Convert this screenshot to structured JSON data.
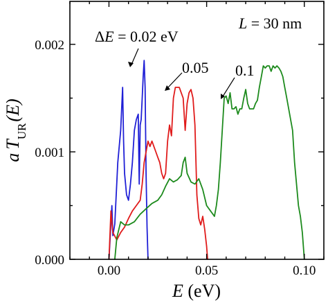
{
  "chart_data": {
    "type": "line",
    "xlabel_italic": "E",
    "xlabel_unit": " (eV)",
    "ylabel_a": "a",
    "ylabel_T": "T",
    "ylabel_sub": "UR",
    "ylabel_arg": "(E)",
    "xlim": [
      -0.02,
      0.11
    ],
    "ylim": [
      0.0,
      0.0024
    ],
    "x_ticks": [
      0.0,
      0.05,
      0.1
    ],
    "x_tick_labels": [
      "0.00",
      "0.05",
      "0.10"
    ],
    "y_ticks": [
      0.0,
      0.001,
      0.002
    ],
    "y_tick_labels": [
      "0.000",
      "0.001",
      "0.002"
    ],
    "annotations": {
      "length": {
        "italic": "L",
        "text": " = 30 nm"
      },
      "de002": {
        "prefix": "Δ",
        "italic": "E",
        "text": " = 0.02 eV"
      },
      "de005": {
        "text": "0.05"
      },
      "de01": {
        "text": "0.1"
      }
    },
    "series": [
      {
        "label": "ΔE = 0.02 eV",
        "color": "#1f1fd6",
        "x": [
          0.0,
          0.0015,
          0.002,
          0.003,
          0.0045,
          0.006,
          0.007,
          0.0075,
          0.008,
          0.009,
          0.01,
          0.011,
          0.012,
          0.013,
          0.014,
          0.015,
          0.0155,
          0.016,
          0.0165,
          0.017,
          0.0175,
          0.018,
          0.0185,
          0.019,
          0.0195,
          0.02
        ],
        "y": [
          0.0,
          0.0005,
          0.00022,
          0.00033,
          0.0009,
          0.0012,
          0.0016,
          0.0011,
          0.0008,
          0.0006,
          0.00055,
          0.0007,
          0.0009,
          0.0012,
          0.0013,
          0.00135,
          0.0007,
          0.00125,
          0.0013,
          0.0015,
          0.0017,
          0.00185,
          0.0016,
          0.0008,
          0.0003,
          0.0
        ]
      },
      {
        "label": "0.05",
        "color": "#e01b1b",
        "x": [
          0.0,
          0.001,
          0.002,
          0.004,
          0.006,
          0.008,
          0.01,
          0.012,
          0.014,
          0.016,
          0.017,
          0.018,
          0.019,
          0.02,
          0.021,
          0.022,
          0.023,
          0.024,
          0.025,
          0.026,
          0.027,
          0.028,
          0.029,
          0.03,
          0.031,
          0.032,
          0.033,
          0.034,
          0.035,
          0.036,
          0.037,
          0.038,
          0.039,
          0.04,
          0.041,
          0.042,
          0.043,
          0.044,
          0.045,
          0.046,
          0.047,
          0.048,
          0.049,
          0.05,
          0.0505
        ],
        "y": [
          0.0,
          0.00045,
          0.00025,
          0.00018,
          0.00025,
          0.0003,
          0.00038,
          0.00045,
          0.0005,
          0.00055,
          0.0007,
          0.0009,
          0.001,
          0.0011,
          0.00105,
          0.0011,
          0.00105,
          0.001,
          0.00095,
          0.0009,
          0.0008,
          0.00075,
          0.0008,
          0.0011,
          0.00125,
          0.00115,
          0.0015,
          0.0016,
          0.0016,
          0.0016,
          0.00155,
          0.0015,
          0.0012,
          0.00145,
          0.00155,
          0.00158,
          0.0015,
          0.00125,
          0.0006,
          0.00038,
          0.00032,
          0.0004,
          0.00028,
          0.00012,
          0.0
        ]
      },
      {
        "label": "0.1",
        "color": "#1c8a1c",
        "x": [
          0.003,
          0.004,
          0.006,
          0.008,
          0.01,
          0.013,
          0.016,
          0.019,
          0.022,
          0.025,
          0.027,
          0.029,
          0.031,
          0.033,
          0.035,
          0.037,
          0.038,
          0.039,
          0.04,
          0.042,
          0.044,
          0.046,
          0.048,
          0.05,
          0.052,
          0.054,
          0.055,
          0.056,
          0.057,
          0.058,
          0.059,
          0.06,
          0.061,
          0.062,
          0.063,
          0.064,
          0.065,
          0.066,
          0.067,
          0.068,
          0.069,
          0.07,
          0.071,
          0.072,
          0.073,
          0.074,
          0.075,
          0.076,
          0.077,
          0.078,
          0.079,
          0.08,
          0.081,
          0.082,
          0.083,
          0.084,
          0.085,
          0.086,
          0.087,
          0.088,
          0.089,
          0.09,
          0.091,
          0.092,
          0.093,
          0.094,
          0.095,
          0.096,
          0.097,
          0.098,
          0.099,
          0.1
        ],
        "y": [
          0.0,
          0.0002,
          0.00035,
          0.00032,
          0.00032,
          0.00035,
          0.00042,
          0.00047,
          0.00052,
          0.00055,
          0.0006,
          0.00068,
          0.00075,
          0.00072,
          0.00074,
          0.00078,
          0.0009,
          0.00095,
          0.0008,
          0.00072,
          0.0007,
          0.00075,
          0.00065,
          0.0005,
          0.00045,
          0.0004,
          0.0005,
          0.00065,
          0.0009,
          0.0012,
          0.0015,
          0.00152,
          0.00145,
          0.00155,
          0.0014,
          0.0014,
          0.00142,
          0.00135,
          0.0014,
          0.0014,
          0.0015,
          0.00158,
          0.00145,
          0.0014,
          0.0014,
          0.0014,
          0.00145,
          0.00148,
          0.0016,
          0.0017,
          0.0018,
          0.00178,
          0.0018,
          0.0018,
          0.00175,
          0.0018,
          0.00178,
          0.0018,
          0.00178,
          0.00175,
          0.0017,
          0.0016,
          0.0015,
          0.0014,
          0.0013,
          0.0012,
          0.0009,
          0.0007,
          0.0005,
          0.0004,
          0.00025,
          0.0
        ]
      }
    ],
    "grid": false,
    "legend": "none"
  }
}
